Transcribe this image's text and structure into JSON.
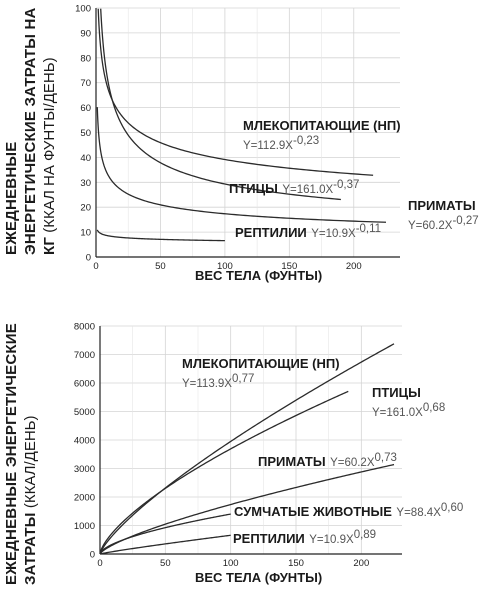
{
  "chart_data": [
    {
      "type": "line",
      "ylabel": "ЕЖЕДНЕВНЫЕ ЭНЕРГЕТИЧЕСКИЕ ЗАТРАТЫ НА КГ (ККАЛ НА ФУНТЫ/ДЕНЬ)",
      "ylabel_bold": [
        "ЕЖЕДНЕВНЫЕ",
        "ЭНЕРГЕТИЧЕСКИЕ ЗАТРАТЫ НА",
        "КГ"
      ],
      "ylabel_light": "(ККАЛ НА ФУНТЫ/ДЕНЬ)",
      "xlabel": "ВЕС ТЕЛА (ФУНТЫ)",
      "xlim": [
        0,
        225
      ],
      "ylim": [
        0,
        100
      ],
      "xticks": [
        "0",
        "50",
        "100",
        "150",
        "200"
      ],
      "yticks": [
        "0",
        "10",
        "20",
        "30",
        "40",
        "50",
        "60",
        "70",
        "80",
        "90",
        "100"
      ],
      "grid": true,
      "series": [
        {
          "name": "МЛЕКОПИТАЮЩИЕ (НП)",
          "equation": "Y=112.9X",
          "exponent": "-0,23",
          "coef": 112.9,
          "exp": -0.23,
          "xrange": [
            1,
            215
          ]
        },
        {
          "name": "ПТИЦЫ",
          "equation": "Y=161.0X",
          "exponent": "-0,37",
          "coef": 161.0,
          "exp": -0.37,
          "xrange": [
            1,
            190
          ]
        },
        {
          "name": "ПРИМАТЫ",
          "equation": "Y=60.2X",
          "exponent": "-0,27",
          "coef": 60.2,
          "exp": -0.27,
          "xrange": [
            1,
            225
          ]
        },
        {
          "name": "РЕПТИЛИИ",
          "equation": "Y=10.9X",
          "exponent": "-0,11",
          "coef": 10.9,
          "exp": -0.11,
          "xrange": [
            1,
            100
          ]
        }
      ]
    },
    {
      "type": "line",
      "ylabel": "ЕЖЕДНЕВНЫЕ ЭНЕРГЕТИЧЕСКИЕ ЗАТРАТЫ (ККАЛ/ДЕНЬ)",
      "ylabel_bold": [
        "ЕЖЕДНЕВНЫЕ ЭНЕРГЕТИЧЕСКИЕ",
        "ЗАТРАТЫ"
      ],
      "ylabel_light": "(ККАЛ/ДЕНЬ)",
      "xlabel": "ВЕС ТЕЛА (ФУНТЫ)",
      "xlim": [
        0,
        225
      ],
      "ylim": [
        0,
        8000
      ],
      "xticks": [
        "0",
        "50",
        "100",
        "150",
        "200"
      ],
      "yticks": [
        "0",
        "1000",
        "2000",
        "3000",
        "4000",
        "5000",
        "6000",
        "7000",
        "8000"
      ],
      "grid": true,
      "series": [
        {
          "name": "МЛЕКОПИТАЮЩИЕ (НП)",
          "equation": "Y=113.9X",
          "exponent": "0,77",
          "coef": 113.9,
          "exp": 0.77,
          "xrange": [
            0,
            225
          ]
        },
        {
          "name": "ПТИЦЫ",
          "equation": "Y=161.0X",
          "exponent": "0,68",
          "coef": 161.0,
          "exp": 0.68,
          "xrange": [
            0,
            190
          ]
        },
        {
          "name": "ПРИМАТЫ",
          "equation": "Y=60.2X",
          "exponent": "0,73",
          "coef": 60.2,
          "exp": 0.73,
          "xrange": [
            0,
            225
          ]
        },
        {
          "name": "СУМЧАТЫЕ ЖИВОТНЫЕ",
          "equation": "Y=88.4X",
          "exponent": "0,60",
          "coef": 88.4,
          "exp": 0.6,
          "xrange": [
            0,
            100
          ]
        },
        {
          "name": "РЕПТИЛИИ",
          "equation": "Y=10.9X",
          "exponent": "0,89",
          "coef": 10.9,
          "exp": 0.89,
          "xrange": [
            0,
            100
          ]
        }
      ]
    }
  ]
}
